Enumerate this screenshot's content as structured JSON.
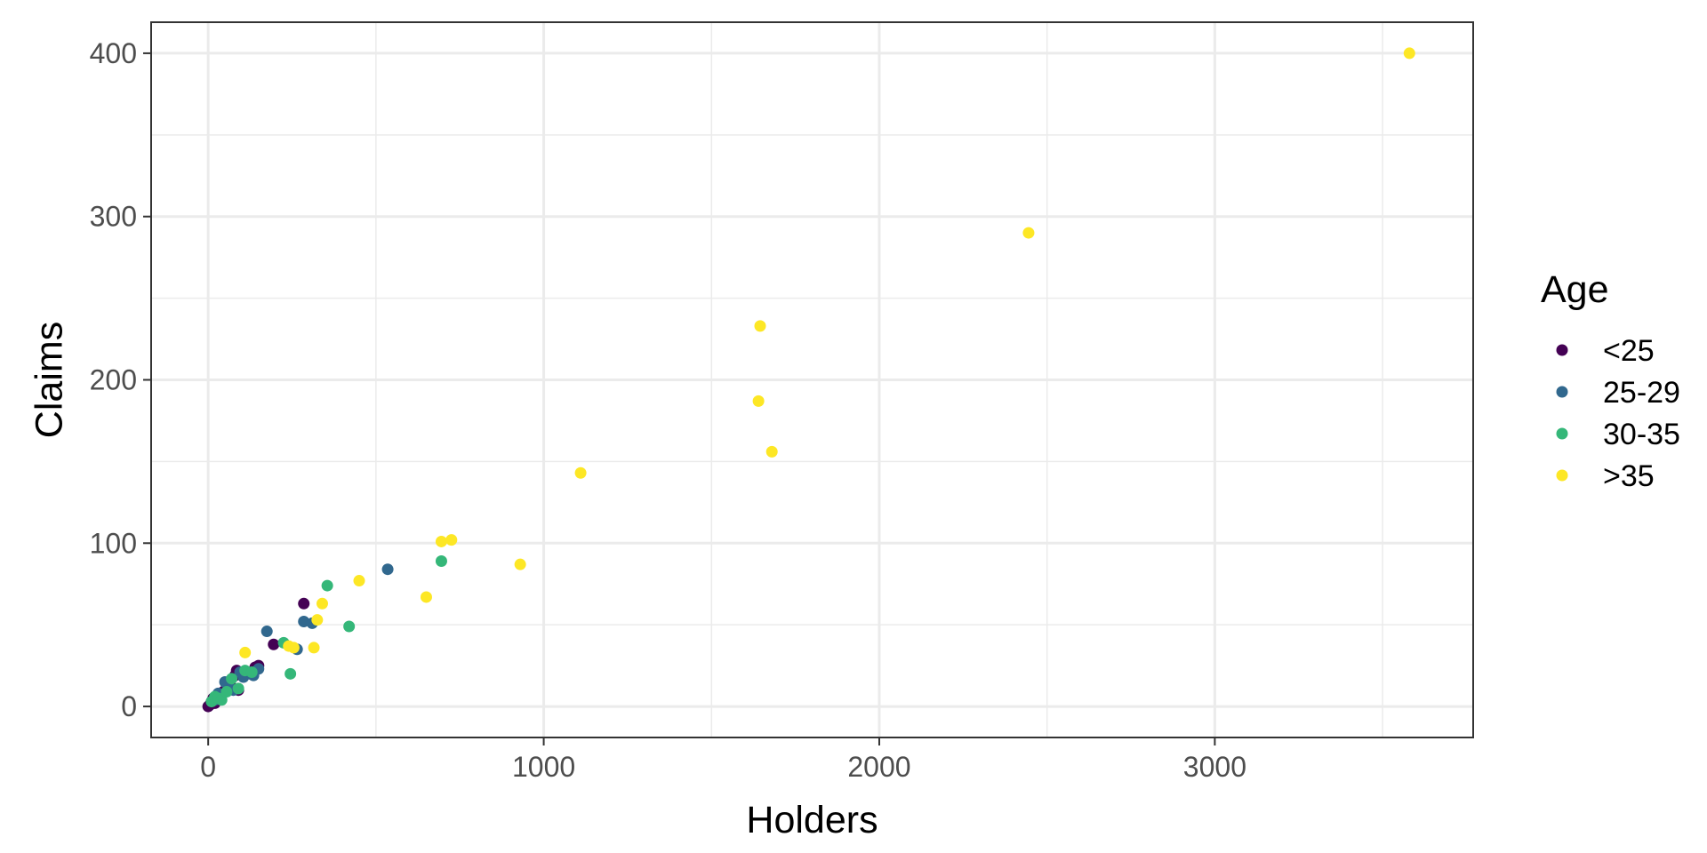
{
  "chart_data": {
    "type": "scatter",
    "title": "",
    "xlabel": "Holders",
    "ylabel": "Claims",
    "xlim": [
      -170,
      3770
    ],
    "ylim": [
      -19,
      419
    ],
    "x_ticks": [
      0,
      1000,
      2000,
      3000
    ],
    "y_ticks": [
      0,
      100,
      200,
      300,
      400
    ],
    "grid": true,
    "legend": {
      "title": "Age",
      "position": "right"
    },
    "series": [
      {
        "name": "<25",
        "color": "#440154",
        "points": [
          [
            0,
            0
          ],
          [
            5,
            1
          ],
          [
            10,
            3
          ],
          [
            15,
            5
          ],
          [
            20,
            2
          ],
          [
            25,
            6
          ],
          [
            30,
            4
          ],
          [
            35,
            8
          ],
          [
            45,
            9
          ],
          [
            55,
            12
          ],
          [
            65,
            15
          ],
          [
            80,
            19
          ],
          [
            85,
            22
          ],
          [
            90,
            10
          ],
          [
            125,
            20
          ],
          [
            140,
            24
          ],
          [
            150,
            25
          ],
          [
            195,
            38
          ],
          [
            285,
            63
          ]
        ]
      },
      {
        "name": "25-29",
        "color": "#31688E",
        "points": [
          [
            20,
            4
          ],
          [
            30,
            8
          ],
          [
            50,
            15
          ],
          [
            60,
            13
          ],
          [
            75,
            10
          ],
          [
            95,
            21
          ],
          [
            105,
            18
          ],
          [
            135,
            19
          ],
          [
            150,
            23
          ],
          [
            175,
            46
          ],
          [
            265,
            35
          ],
          [
            285,
            52
          ],
          [
            310,
            51
          ],
          [
            535,
            84
          ]
        ]
      },
      {
        "name": "30-35",
        "color": "#35B779",
        "points": [
          [
            10,
            3
          ],
          [
            20,
            6
          ],
          [
            30,
            5
          ],
          [
            40,
            4
          ],
          [
            55,
            9
          ],
          [
            70,
            17
          ],
          [
            90,
            11
          ],
          [
            110,
            22
          ],
          [
            130,
            21
          ],
          [
            225,
            39
          ],
          [
            245,
            20
          ],
          [
            355,
            74
          ],
          [
            420,
            49
          ],
          [
            695,
            89
          ]
        ]
      },
      {
        "name": ">35",
        "color": "#FDE725",
        "points": [
          [
            110,
            33
          ],
          [
            240,
            37
          ],
          [
            255,
            36
          ],
          [
            315,
            36
          ],
          [
            325,
            53
          ],
          [
            340,
            63
          ],
          [
            450,
            77
          ],
          [
            650,
            67
          ],
          [
            695,
            101
          ],
          [
            725,
            102
          ],
          [
            930,
            87
          ],
          [
            1110,
            143
          ],
          [
            1640,
            187
          ],
          [
            1645,
            233
          ],
          [
            1680,
            156
          ],
          [
            2445,
            290
          ],
          [
            3580,
            400
          ]
        ]
      }
    ]
  }
}
